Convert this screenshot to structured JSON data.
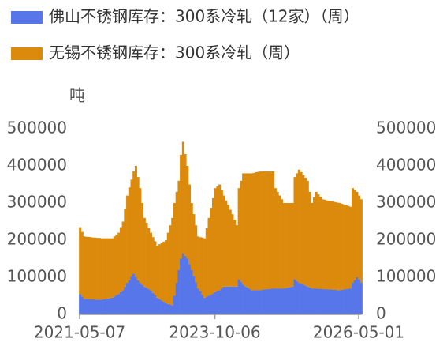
{
  "chart_data": {
    "type": "bar",
    "stacked": true,
    "y_label": "吨",
    "categories": [
      "2021-05-07",
      null,
      null,
      null,
      null,
      null,
      null,
      null,
      null,
      null,
      null,
      null,
      null,
      null,
      null,
      null,
      null,
      null,
      null,
      null,
      null,
      null,
      null,
      null,
      null,
      null,
      null,
      null,
      null,
      null,
      null,
      null,
      null,
      null,
      null,
      null,
      null,
      null,
      null,
      null,
      null,
      null,
      null,
      null,
      null,
      null,
      null,
      null,
      null,
      null,
      null,
      null,
      null,
      null,
      null,
      null,
      null,
      null,
      null,
      null,
      null,
      null,
      null,
      "2023-10-06",
      null,
      null,
      null,
      null,
      null,
      null,
      null,
      null,
      null,
      null,
      null,
      null,
      null,
      null,
      null,
      null,
      null,
      null,
      null,
      null,
      null,
      null,
      null,
      null,
      null,
      null,
      null,
      null,
      null,
      null,
      null,
      null,
      null,
      null,
      null,
      null,
      null,
      null,
      null,
      null,
      null,
      null,
      null,
      null,
      null,
      null,
      null,
      null,
      null,
      null,
      null,
      null,
      null,
      null,
      null,
      null,
      null,
      null,
      null,
      null,
      null,
      null,
      null,
      null,
      null,
      null,
      "2026-05-01",
      null
    ],
    "series": [
      {
        "name": "佛山不锈钢库存：300系冷轧（12家）（周）",
        "color": "#5676ea",
        "values": [
          55000,
          48000,
          42000,
          42000,
          41000,
          41000,
          41000,
          40000,
          40000,
          40000,
          40000,
          41000,
          42000,
          43000,
          44000,
          45000,
          48000,
          52000,
          55000,
          60000,
          65000,
          75000,
          85000,
          93000,
          102000,
          110000,
          100000,
          92000,
          85000,
          80000,
          75000,
          72000,
          68000,
          65000,
          58000,
          52000,
          45000,
          41000,
          38000,
          34000,
          30000,
          28000,
          27000,
          25000,
          50000,
          85000,
          120000,
          150000,
          165000,
          158000,
          150000,
          135000,
          120000,
          103000,
          87000,
          70000,
          62000,
          53000,
          45000,
          48000,
          50000,
          53000,
          57000,
          60000,
          63000,
          65000,
          70000,
          75000,
          75000,
          75000,
          75000,
          75000,
          75000,
          75000,
          95000,
          88000,
          80000,
          76000,
          73000,
          69000,
          65000,
          65000,
          65000,
          65000,
          65000,
          66000,
          67000,
          68000,
          68000,
          69000,
          70000,
          70000,
          70000,
          70000,
          70000,
          70000,
          71000,
          73000,
          74000,
          75000,
          95000,
          90000,
          85000,
          83000,
          80000,
          78000,
          75000,
          73000,
          70000,
          70000,
          70000,
          69000,
          69000,
          68000,
          68000,
          67000,
          67000,
          67000,
          66000,
          66000,
          65000,
          65000,
          66000,
          67000,
          68000,
          69000,
          70000,
          85000,
          93000,
          100000,
          95000,
          85000
        ]
      },
      {
        "name": "无锡不锈钢库存：300系冷轧（周）",
        "color": "#dc8a0c",
        "values": [
          180000,
          174000,
          168000,
          167000,
          168000,
          167000,
          166000,
          167000,
          166000,
          166000,
          165000,
          164000,
          163000,
          162000,
          161000,
          160000,
          162000,
          163000,
          165000,
          175000,
          185000,
          210000,
          235000,
          249000,
          261000,
          275000,
          300000,
          278000,
          255000,
          220000,
          185000,
          175000,
          165000,
          155000,
          150000,
          145000,
          140000,
          148000,
          155000,
          162000,
          170000,
          192000,
          213000,
          235000,
          250000,
          245000,
          240000,
          280000,
          300000,
          274000,
          250000,
          215000,
          180000,
          167000,
          153000,
          140000,
          146000,
          154000,
          160000,
          184000,
          210000,
          234000,
          256000,
          280000,
          282000,
          285000,
          265000,
          245000,
          232000,
          220000,
          207000,
          195000,
          180000,
          165000,
          245000,
          272000,
          300000,
          304000,
          307000,
          311000,
          315000,
          316000,
          318000,
          319000,
          320000,
          319000,
          318000,
          317000,
          317000,
          316000,
          315000,
          270000,
          260000,
          250000,
          240000,
          230000,
          229000,
          227000,
          226000,
          225000,
          275000,
          290000,
          305000,
          300000,
          295000,
          290000,
          285000,
          257000,
          230000,
          245000,
          260000,
          254000,
          248000,
          242000,
          241000,
          240000,
          239000,
          238000,
          238000,
          236000,
          236000,
          235000,
          232000,
          229000,
          226000,
          223000,
          220000,
          255000,
          242000,
          230000,
          225000,
          225000
        ]
      }
    ],
    "ylim": [
      0,
      500000
    ],
    "yticks": [
      0,
      100000,
      200000,
      300000,
      400000,
      500000
    ],
    "y2lim": [
      0,
      500000
    ],
    "y2ticks": [
      0,
      100000,
      200000,
      300000,
      400000,
      500000
    ],
    "grid": false
  }
}
